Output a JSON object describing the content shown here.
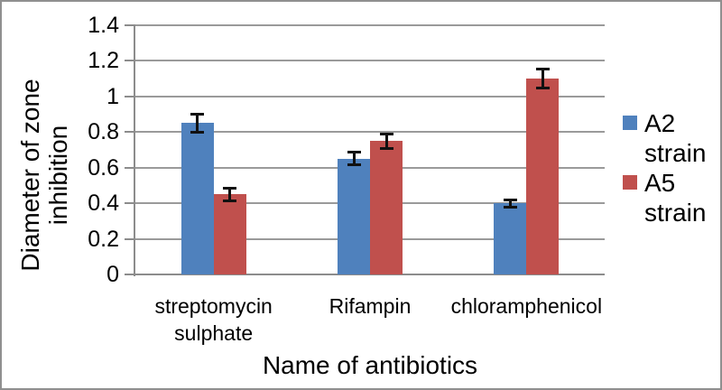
{
  "figure": {
    "border_color": "#8f8f8f",
    "background": "#ffffff"
  },
  "chart_data": {
    "type": "bar",
    "title": "",
    "categories": [
      "streptomycin sulphate",
      "Rifampin",
      "chloramphenicol"
    ],
    "series": [
      {
        "name": "A2 strain",
        "color": "#4f81bd",
        "values": [
          0.85,
          0.65,
          0.4
        ],
        "errors": [
          0.05,
          0.035,
          0.02
        ]
      },
      {
        "name": "A5 strain",
        "color": "#c0504d",
        "values": [
          0.45,
          0.75,
          1.1
        ],
        "errors": [
          0.035,
          0.04,
          0.055
        ]
      }
    ],
    "xlabel": "Name of antibiotics",
    "ylabel": "Diameter of zone inhibition",
    "ylabel_lines": [
      "Diameter of zone",
      "inhibition"
    ],
    "ylim": [
      0,
      1.4
    ],
    "ytick_step": 0.2,
    "ytick_labels": [
      "0",
      "0.2",
      "0.4",
      "0.6",
      "0.8",
      "1",
      "1.2",
      "1.4"
    ],
    "grid": true,
    "legend_position": "right",
    "error_bars": true,
    "gridline_color": "#9a9a9a",
    "axis_color": "#8c8c8c",
    "error_bar_color": "#111111",
    "text_color": "#000000"
  }
}
